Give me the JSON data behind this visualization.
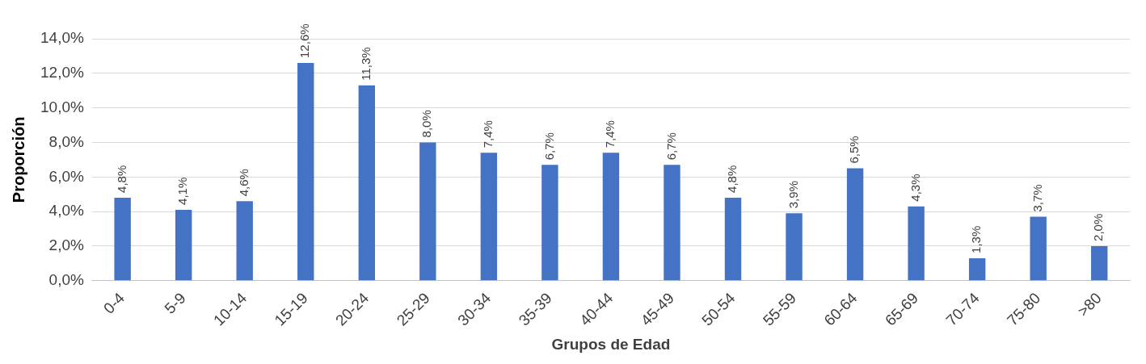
{
  "chart_data": {
    "type": "bar",
    "xlabel": "Grupos de Edad",
    "ylabel": "Proporción",
    "categories": [
      "0-4",
      "5-9",
      "10-14",
      "15-19",
      "20-24",
      "25-29",
      "30-34",
      "35-39",
      "40-44",
      "45-49",
      "50-54",
      "55-59",
      "60-64",
      "65-69",
      "70-74",
      "75-80",
      ">80"
    ],
    "values": [
      4.8,
      4.1,
      4.6,
      12.6,
      11.3,
      8.0,
      7.4,
      6.7,
      7.4,
      6.7,
      4.8,
      3.9,
      6.5,
      4.3,
      1.3,
      3.7,
      2.0
    ],
    "value_labels": [
      "4,8%",
      "4,1%",
      "4,6%",
      "12,6%",
      "11,3%",
      "8,0%",
      "7,4%",
      "6,7%",
      "7,4%",
      "6,7%",
      "4,8%",
      "3,9%",
      "6,5%",
      "4,3%",
      "1,3%",
      "3,7%",
      "2,0%"
    ],
    "color": "#4472c4",
    "ylim": [
      0,
      14
    ],
    "yticks": [
      {
        "value": 0,
        "label": "0,0%"
      },
      {
        "value": 2,
        "label": "2,0%"
      },
      {
        "value": 4,
        "label": "4,0%"
      },
      {
        "value": 6,
        "label": "6,0%"
      },
      {
        "value": 8,
        "label": "8,0%"
      },
      {
        "value": 10,
        "label": "10,0%"
      },
      {
        "value": 12,
        "label": "12,0%"
      },
      {
        "value": 14,
        "label": "14,0%"
      }
    ],
    "grid": "y",
    "legend": false
  }
}
